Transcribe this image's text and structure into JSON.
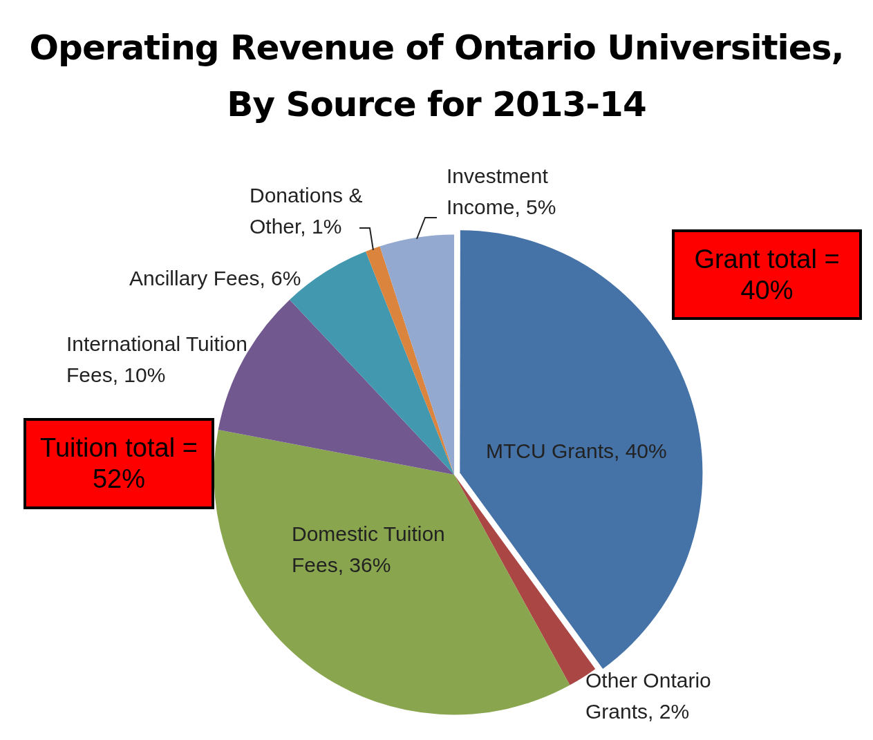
{
  "chart_data": {
    "type": "pie",
    "title": "Operating Revenue of Ontario Universities, By Source for 2013-14",
    "categories": [
      "MTCU Grants",
      "Other Ontario Grants",
      "Domestic Tuition Fees",
      "International Tuition Fees",
      "Ancillary Fees",
      "Donations & Other",
      "Investment Income"
    ],
    "values": [
      40,
      2,
      36,
      10,
      6,
      1,
      5
    ],
    "value_labels": [
      "40%",
      "2%",
      "36%",
      "10%",
      "6%",
      "1%",
      "5%"
    ],
    "colors": [
      "#4572a7",
      "#aa4643",
      "#89a54e",
      "#71588f",
      "#4198af",
      "#db843d",
      "#93a9cf"
    ],
    "legend": false,
    "annotations": [
      "Grant total = 40%",
      "Tuition total = 52%"
    ]
  }
}
